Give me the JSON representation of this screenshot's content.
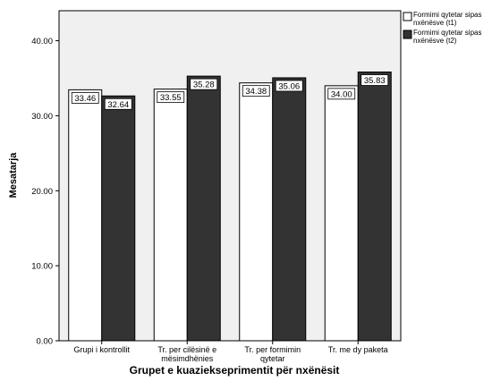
{
  "chart_data": {
    "type": "bar",
    "title": "",
    "xlabel": "Grupet e kuaziekseprimentit për nxënësit",
    "ylabel": "Mesatarja",
    "ylim": [
      0,
      44
    ],
    "yticks": [
      "0.00",
      "10.00",
      "20.00",
      "30.00",
      "40.00"
    ],
    "categories": [
      [
        "Grupi i kontrollit"
      ],
      [
        "Tr. per cilësinë e",
        "mësimdhënies"
      ],
      [
        "Tr. per formimin",
        "qytetar"
      ],
      [
        "Tr. me dy paketa"
      ]
    ],
    "series": [
      {
        "name": [
          "Formimi qytetar sipas",
          "nxënësve (t1)"
        ],
        "values": [
          33.46,
          33.55,
          34.38,
          34.0
        ],
        "labels": [
          "33.46",
          "33.55",
          "34.38",
          "34.00"
        ],
        "color": "#ffffff"
      },
      {
        "name": [
          "Formimi qytetar sipas",
          "nxënësve (t2)"
        ],
        "values": [
          32.64,
          35.28,
          35.06,
          35.83
        ],
        "labels": [
          "32.64",
          "35.28",
          "35.06",
          "35.83"
        ],
        "color": "#333333"
      }
    ],
    "grid": false,
    "legend_position": "top-right",
    "colors": {
      "plot_background": "#f0f0f0",
      "bar_outline": "#000000"
    }
  }
}
